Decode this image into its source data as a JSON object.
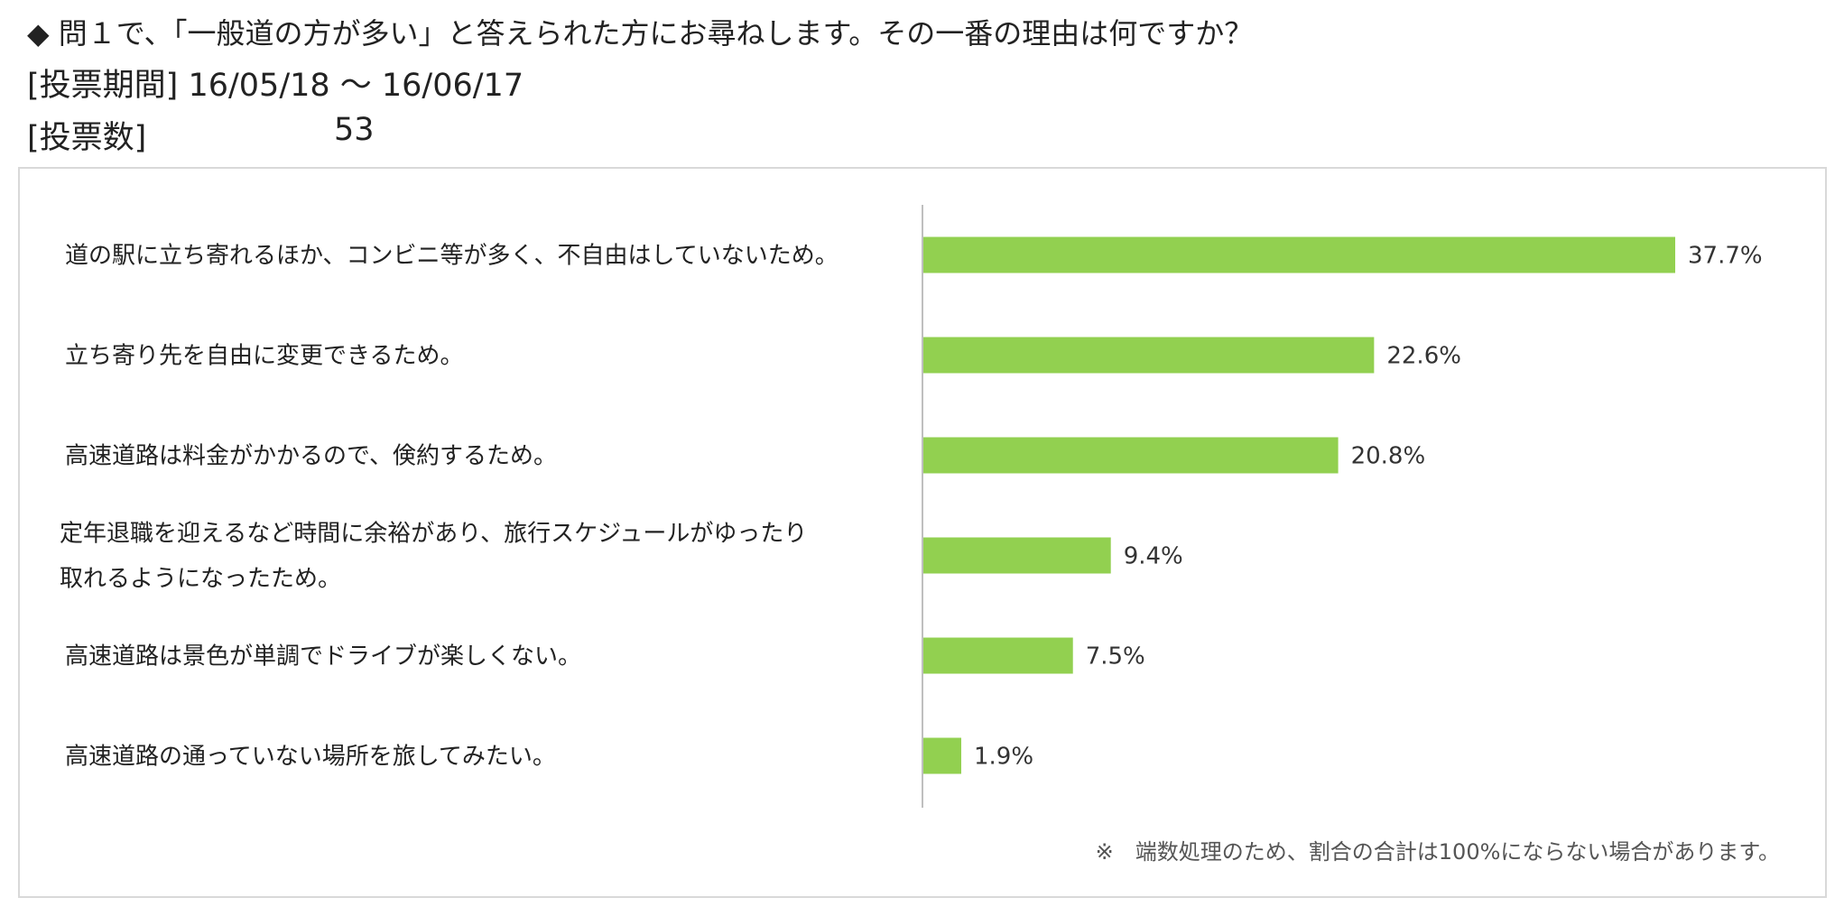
{
  "header": {
    "question": "◆ 問１で、「一般道の方が多い」と答えられた方にお尋ねします。その一番の理由は何ですか？",
    "period_label": "[投票期間]",
    "period_value": "16/05/18 ～ 16/06/17",
    "votes_label": "[投票数]",
    "votes_value": "53"
  },
  "chart_data": {
    "type": "bar",
    "orientation": "horizontal",
    "categories": [
      [
        "道の駅に立ち寄れるほか、コンビニ等が多く、不自由はしていないため。"
      ],
      [
        "立ち寄り先を自由に変更できるため。"
      ],
      [
        "高速道路は料金がかかるので、倹約するため。"
      ],
      [
        "定年退職を迎えるなど時間に余裕があり、旅行スケジュールがゆったり",
        "取れるようになったため。"
      ],
      [
        "高速道路は景色が単調でドライブが楽しくない。"
      ],
      [
        "高速道路の通っていない場所を旅してみたい。"
      ]
    ],
    "values": [
      37.7,
      22.6,
      20.8,
      9.4,
      7.5,
      1.9
    ],
    "value_labels": [
      "37.7%",
      "22.6%",
      "20.8%",
      "9.4%",
      "7.5%",
      "1.9%"
    ],
    "xlim": [
      0,
      40
    ],
    "bar_color": "#92d050",
    "axis_color": "#bfbfbf",
    "grid": false,
    "legend": "none"
  },
  "note": "※　端数処理のため、割合の合計は100%にならない場合があります。"
}
